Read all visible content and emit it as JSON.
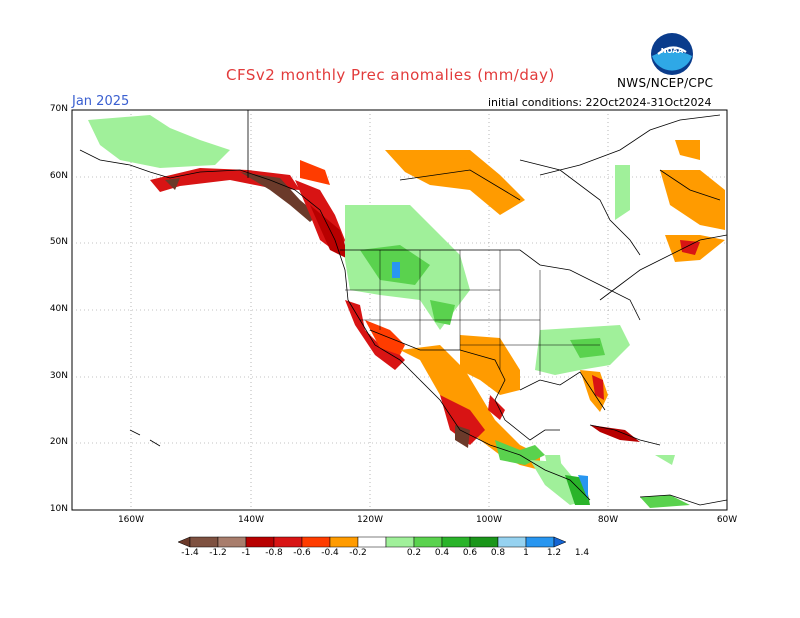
{
  "title": "CFSv2 monthly Prec anomalies (mm/day)",
  "month": "Jan 2025",
  "initial_conditions": "initial conditions: 22Oct2024-31Oct2024",
  "agency": "NWS/NCEP/CPC",
  "logo_text": "NOAA",
  "lat_labels": [
    "70N",
    "60N",
    "50N",
    "40N",
    "30N",
    "20N",
    "10N"
  ],
  "lon_labels": [
    "160W",
    "140W",
    "120W",
    "100W",
    "80W",
    "60W"
  ],
  "colorbar": {
    "labels": [
      "-1.4",
      "-1.2",
      "-1",
      "-0.8",
      "-0.6",
      "-0.4",
      "-0.2",
      "0.2",
      "0.4",
      "0.6",
      "0.8",
      "1",
      "1.2",
      "1.4"
    ],
    "colors": [
      "#6b3a2a",
      "#7e5140",
      "#a87d6c",
      "#b80000",
      "#d81414",
      "#ff3c00",
      "#ff9b00",
      "#ffffff",
      "#a0f09a",
      "#5ad24e",
      "#2ab42a",
      "#1a961a",
      "#96d2f0",
      "#2896f0",
      "#1464d2"
    ]
  }
}
